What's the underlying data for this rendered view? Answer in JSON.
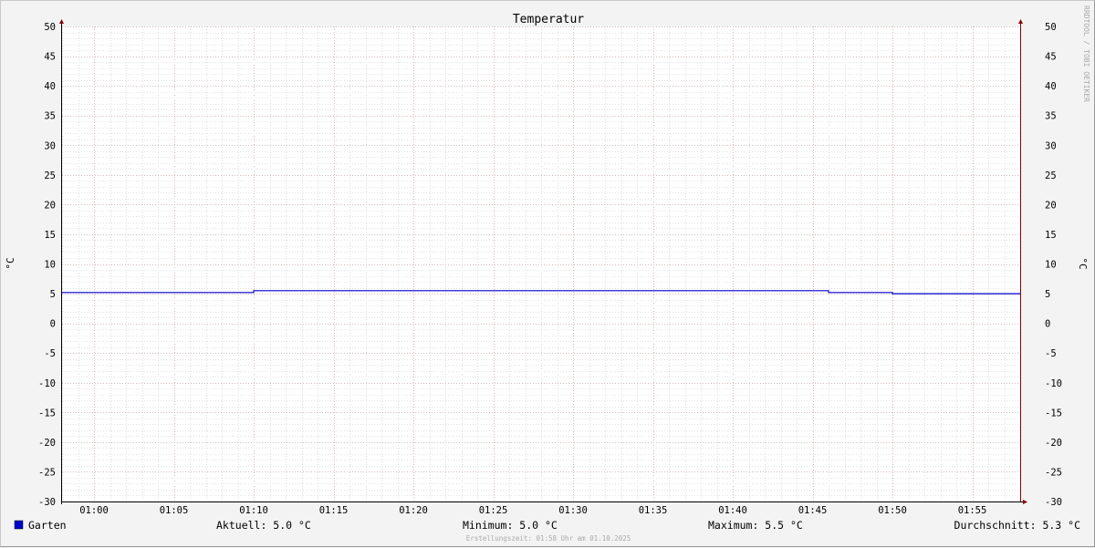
{
  "chart_data": {
    "type": "line",
    "title": "Temperatur",
    "ylabel": "°C",
    "ylabel_right": "°C",
    "ylim": [
      -30,
      50
    ],
    "yticks": [
      50,
      45,
      40,
      35,
      30,
      25,
      20,
      15,
      10,
      5,
      0,
      -5,
      -10,
      -15,
      -20,
      -25,
      -30
    ],
    "xlim": [
      "00:58",
      "01:58"
    ],
    "xticks": [
      "01:00",
      "01:05",
      "01:10",
      "01:15",
      "01:20",
      "01:25",
      "01:30",
      "01:35",
      "01:40",
      "01:45",
      "01:50",
      "01:55"
    ],
    "grid": true,
    "series": [
      {
        "name": "Garten",
        "color": "#0000cc",
        "points": [
          [
            "00:58",
            5.2
          ],
          [
            "01:10",
            5.2
          ],
          [
            "01:10",
            5.5
          ],
          [
            "01:46",
            5.5
          ],
          [
            "01:46",
            5.2
          ],
          [
            "01:50",
            5.2
          ],
          [
            "01:50",
            5.0
          ],
          [
            "01:58",
            5.0
          ]
        ]
      }
    ],
    "legend": {
      "placement": "bottom",
      "name": "Garten",
      "current": "Aktuell: 5.0 °C",
      "minimum": "Minimum: 5.0 °C",
      "maximum": "Maximum: 5.5 °C",
      "average": "Durchschnitt: 5.3 °C"
    },
    "watermark": "RRDTOOL / TOBI OETIKER",
    "footer": "Erstellungszeit: 01:58 Uhr am 01.10.2025"
  }
}
